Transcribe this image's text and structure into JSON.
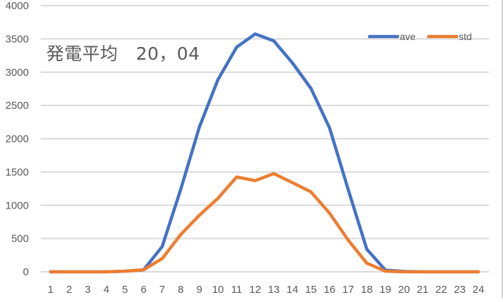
{
  "chart_data": {
    "type": "line",
    "title": "発電平均　20，04",
    "xlabel": "",
    "ylabel": "",
    "x": [
      1,
      2,
      3,
      4,
      5,
      6,
      7,
      8,
      9,
      10,
      11,
      12,
      13,
      14,
      15,
      16,
      17,
      18,
      19,
      20,
      21,
      22,
      23,
      24
    ],
    "categories": [
      "1",
      "2",
      "3",
      "4",
      "5",
      "6",
      "7",
      "8",
      "9",
      "10",
      "11",
      "12",
      "13",
      "14",
      "15",
      "16",
      "17",
      "18",
      "19",
      "20",
      "21",
      "22",
      "23",
      "24"
    ],
    "series": [
      {
        "name": "ave",
        "color": "#4472C4",
        "values": [
          0,
          0,
          0,
          0,
          10,
          30,
          380,
          1240,
          2175,
          2890,
          3375,
          3575,
          3470,
          3140,
          2755,
          2160,
          1235,
          340,
          25,
          5,
          0,
          0,
          0,
          0
        ]
      },
      {
        "name": "std",
        "color": "#ED7D31",
        "values": [
          0,
          0,
          0,
          0,
          10,
          30,
          200,
          560,
          850,
          1105,
          1425,
          1370,
          1475,
          1340,
          1200,
          880,
          475,
          130,
          10,
          0,
          0,
          0,
          0,
          0
        ]
      }
    ],
    "ylim": [
      0,
      4000
    ],
    "yticks": [
      0,
      500,
      1000,
      1500,
      2000,
      2500,
      3000,
      3500,
      4000
    ],
    "grid": true,
    "legend_position": "top-right"
  },
  "title": {
    "label": "発電平均　20，04"
  },
  "legend": {
    "items": [
      {
        "name": "ave",
        "color": "#4472C4"
      },
      {
        "name": "std",
        "color": "#ED7D31"
      }
    ]
  },
  "colors": {
    "gridline": "#D9D9D9",
    "axis_text": "#595959"
  }
}
